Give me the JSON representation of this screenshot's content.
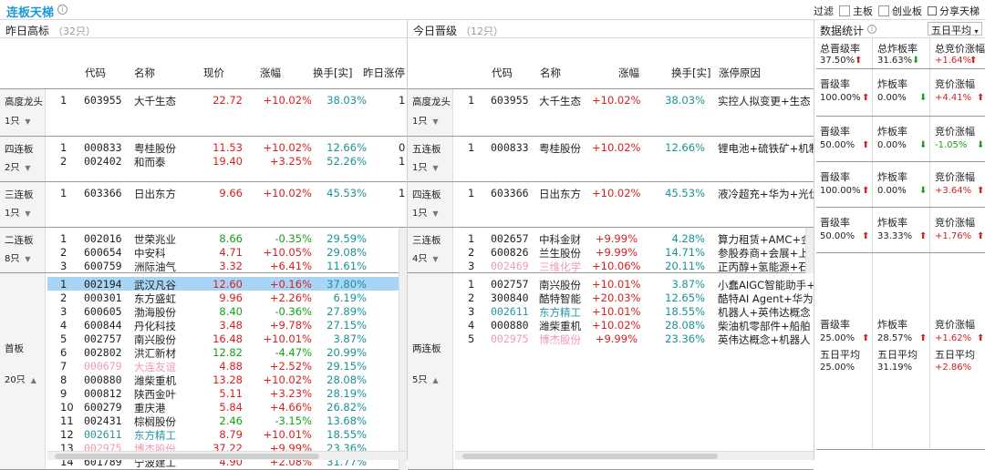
{
  "header": {
    "title": "连板天梯",
    "filter_label": "过滤",
    "main_board": "主板",
    "chinext": "创业板",
    "share": "分享天梯"
  },
  "left": {
    "title": "昨日高标",
    "count": "（32只）",
    "cols": [
      "代码",
      "名称",
      "现价",
      "涨幅",
      "换手[实]",
      "昨日涨停"
    ]
  },
  "mid": {
    "title": "今日晋级",
    "count": "（12只）",
    "cols": [
      "代码",
      "名称",
      "涨幅",
      "换手[实]",
      "涨停原因"
    ]
  },
  "stats": {
    "title": "数据统计",
    "period": "五日平均",
    "top": [
      {
        "label": "总晋级率",
        "value": "37.50%"
      },
      {
        "label": "总炸板率",
        "value": "31.63%"
      },
      {
        "label": "总竞价涨幅",
        "value": "+1.64%"
      }
    ],
    "rows": [
      {
        "a": "晋级率",
        "av": "100.00%",
        "b": "炸板率",
        "bv": "0.00%",
        "c": "竞价涨幅",
        "cv": "+4.41%"
      },
      {
        "a": "晋级率",
        "av": "50.00%",
        "b": "炸板率",
        "bv": "0.00%",
        "c": "竞价涨幅",
        "cv": "-1.05%"
      },
      {
        "a": "晋级率",
        "av": "100.00%",
        "b": "炸板率",
        "bv": "0.00%",
        "c": "竞价涨幅",
        "cv": "+3.64%"
      },
      {
        "a": "晋级率",
        "av": "50.00%",
        "b": "炸板率",
        "bv": "33.33%",
        "c": "竞价涨幅",
        "cv": "+1.76%"
      },
      {
        "a": "晋级率",
        "av": "25.00%",
        "b": "炸板率",
        "bv": "28.57%",
        "c": "竞价涨幅",
        "cv": "+1.62%"
      }
    ],
    "avg": {
      "label": "五日平均",
      "a": "25.00%",
      "b": "31.19%",
      "c": "+2.86%"
    }
  },
  "sections": {
    "s1": {
      "name": "高度龙头",
      "count": "1只"
    },
    "s2": {
      "name": "四连板",
      "count": "2只"
    },
    "s3": {
      "name": "三连板",
      "count": "1只"
    },
    "s4": {
      "name": "二连板",
      "count": "8只"
    },
    "s5": {
      "name": "首板",
      "count": "20只"
    },
    "m2": {
      "name": "五连板",
      "count": "1只"
    },
    "m3": {
      "name": "四连板",
      "count": "1只"
    },
    "m4": {
      "name": "三连板",
      "count": "4只"
    },
    "m5": {
      "name": "两连板",
      "count": "5只"
    }
  },
  "left_rows": {
    "s1": [
      [
        "1",
        "603955",
        "大千生态",
        "22.72",
        "+10.02%",
        "38.03%",
        "1"
      ]
    ],
    "s2": [
      [
        "1",
        "000833",
        "粤桂股份",
        "11.53",
        "+10.02%",
        "12.66%",
        "0"
      ],
      [
        "2",
        "002402",
        "和而泰",
        "19.40",
        "+3.25%",
        "52.26%",
        "1"
      ]
    ],
    "s3": [
      [
        "1",
        "603366",
        "日出东方",
        "9.66",
        "+10.02%",
        "45.53%",
        "1"
      ]
    ],
    "s4": [
      [
        "1",
        "002016",
        "世荣兆业",
        "8.66",
        "-0.35%",
        "29.59%",
        ""
      ],
      [
        "2",
        "600654",
        "中安科",
        "4.71",
        "+10.05%",
        "29.08%",
        ""
      ],
      [
        "3",
        "600759",
        "洲际油气",
        "3.32",
        "+6.41%",
        "11.61%",
        ""
      ]
    ],
    "s5": [
      [
        "1",
        "002194",
        "武汉凡谷",
        "12.60",
        "+0.16%",
        "37.80%",
        ""
      ],
      [
        "2",
        "000301",
        "东方盛虹",
        "9.96",
        "+2.26%",
        "6.19%",
        ""
      ],
      [
        "3",
        "600605",
        "渤海股份",
        "8.40",
        "-0.36%",
        "27.89%",
        ""
      ],
      [
        "4",
        "600844",
        "丹化科技",
        "3.48",
        "+9.78%",
        "27.15%",
        ""
      ],
      [
        "5",
        "002757",
        "南兴股份",
        "16.48",
        "+10.01%",
        "3.87%",
        ""
      ],
      [
        "6",
        "002802",
        "洪汇新材",
        "12.82",
        "-4.47%",
        "20.99%",
        ""
      ],
      [
        "7",
        "000679",
        "大连友谊",
        "4.88",
        "+2.52%",
        "29.15%",
        ""
      ],
      [
        "8",
        "000880",
        "潍柴重机",
        "13.28",
        "+10.02%",
        "28.08%",
        ""
      ],
      [
        "9",
        "000812",
        "陕西金叶",
        "5.11",
        "+3.23%",
        "28.19%",
        ""
      ],
      [
        "10",
        "600279",
        "重庆港",
        "5.84",
        "+4.66%",
        "26.82%",
        ""
      ],
      [
        "11",
        "002431",
        "棕榈股份",
        "2.46",
        "-3.15%",
        "13.68%",
        ""
      ],
      [
        "12",
        "002611",
        "东方精工",
        "8.79",
        "+10.01%",
        "18.55%",
        ""
      ],
      [
        "13",
        "002975",
        "博杰股份",
        "37.22",
        "+9.99%",
        "23.36%",
        ""
      ],
      [
        "14",
        "601789",
        "宁波建工",
        "4.90",
        "+2.08%",
        "31.77%",
        ""
      ]
    ]
  },
  "mid_rows": {
    "m1": [
      [
        "1",
        "603955",
        "大千生态",
        "+10.02%",
        "38.03%",
        "实控人拟变更+生态"
      ]
    ],
    "m2": [
      [
        "1",
        "000833",
        "粤桂股份",
        "+10.02%",
        "12.66%",
        "锂电池+硫铁矿+机制"
      ]
    ],
    "m3": [
      [
        "1",
        "603366",
        "日出东方",
        "+10.02%",
        "45.53%",
        "液冷超充+华为+光伏"
      ]
    ],
    "m4": [
      [
        "1",
        "002657",
        "中科金财",
        "+9.99%",
        "4.28%",
        "算力租赁+AMC+金融"
      ],
      [
        "2",
        "600826",
        "兰生股份",
        "+9.99%",
        "14.71%",
        "参股券商+会展+上"
      ],
      [
        "3",
        "002469",
        "三维化学",
        "+10.06%",
        "20.11%",
        "正丙醇+氢能源+石"
      ]
    ],
    "m5": [
      [
        "1",
        "002757",
        "南兴股份",
        "+10.01%",
        "3.87%",
        "小蠢AIGC智能助手+"
      ],
      [
        "2",
        "300840",
        "酷特智能",
        "+20.03%",
        "12.65%",
        "酷特AI Agent+华为"
      ],
      [
        "3",
        "002611",
        "东方精工",
        "+10.01%",
        "18.55%",
        "机器人+英伟达概念"
      ],
      [
        "4",
        "000880",
        "潍柴重机",
        "+10.02%",
        "28.08%",
        "柴油机零部件+船舶"
      ],
      [
        "5",
        "002975",
        "博杰股份",
        "+9.99%",
        "23.36%",
        "英伟达概念+机器人"
      ]
    ]
  }
}
